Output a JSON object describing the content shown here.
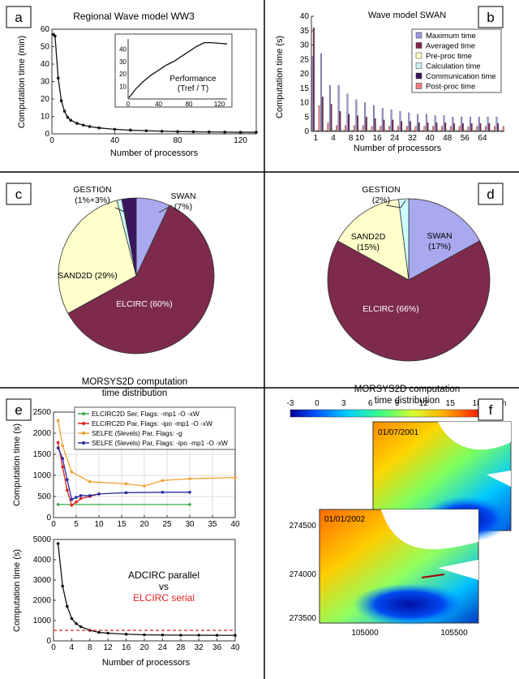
{
  "figure": {
    "panel_labels": [
      "a",
      "b",
      "c",
      "d",
      "e",
      "f"
    ]
  },
  "chart_data": [
    {
      "panel": "a",
      "type": "line",
      "title": "Regional Wave model WW3",
      "xlabel": "Number of processors",
      "ylabel": "Computation time (min)",
      "xlim": [
        0,
        130
      ],
      "ylim": [
        0,
        60
      ],
      "xticks": [
        0,
        40,
        80,
        120
      ],
      "yticks": [
        0,
        10,
        20,
        30,
        40,
        50,
        60
      ],
      "x": [
        1,
        2,
        4,
        6,
        8,
        10,
        12,
        16,
        20,
        24,
        30,
        40,
        50,
        60,
        70,
        80,
        90,
        100,
        110,
        120,
        130
      ],
      "y": [
        57,
        56,
        32,
        19,
        13,
        9.5,
        7.8,
        6,
        5,
        4.2,
        3.4,
        2.6,
        2.1,
        1.8,
        1.5,
        1.3,
        1.2,
        1.1,
        1.0,
        0.9,
        0.9
      ],
      "inset": {
        "annotation_line1": "Performance",
        "annotation_line2": "(Tref / T)",
        "xlim": [
          0,
          130
        ],
        "ylim": [
          0,
          48
        ],
        "xticks": [
          0,
          40,
          80,
          120
        ],
        "yticks": [
          10,
          20,
          30,
          40
        ],
        "x": [
          1,
          5,
          10,
          20,
          30,
          40,
          50,
          60,
          70,
          80,
          90,
          100,
          110,
          120,
          130
        ],
        "y": [
          1,
          4,
          8,
          14,
          19,
          23,
          27,
          30,
          34,
          38,
          42,
          45,
          45,
          44.5,
          44
        ]
      }
    },
    {
      "panel": "b",
      "type": "bar",
      "title": "Wave model SWAN",
      "xlabel": "Number of processors",
      "ylabel": "Computation time (s)",
      "ylim": [
        0,
        40
      ],
      "yticks": [
        0,
        5,
        10,
        15,
        20,
        25,
        30,
        35,
        40
      ],
      "categories": [
        "1",
        "2",
        "4",
        "6",
        "8",
        "10",
        "12",
        "16",
        "20",
        "24",
        "28",
        "32",
        "36",
        "40",
        "44",
        "48",
        "52",
        "56",
        "60",
        "64",
        "68",
        "72"
      ],
      "tick_labels": [
        "1",
        "4",
        "8",
        "10",
        "16",
        "24",
        "32",
        "40",
        "48",
        "56",
        "64"
      ],
      "legend_position": "top-right",
      "series": [
        {
          "name": "Maximum time",
          "color": "#9b9be0",
          "values": [
            26,
            27,
            16,
            16,
            13,
            11,
            10,
            9,
            8,
            7.5,
            7,
            6.5,
            6,
            6,
            5.5,
            5.5,
            5,
            5,
            5,
            5,
            5,
            5
          ]
        },
        {
          "name": "Averaged time",
          "color": "#7d2a4d",
          "values": [
            36,
            12,
            9.5,
            7,
            6,
            5.5,
            5,
            4.5,
            4,
            4,
            3.5,
            3.5,
            3,
            3,
            3,
            3,
            2.8,
            2.8,
            2.8,
            2.8,
            2.8,
            2.8
          ]
        },
        {
          "name": "Pre-proc time",
          "color": "#ffffc8",
          "values": [
            0.5,
            0.5,
            0.5,
            0.5,
            0.5,
            0.5,
            0.5,
            0.5,
            0.5,
            0.5,
            0.5,
            0.5,
            0.5,
            0.5,
            0.5,
            0.5,
            0.5,
            0.5,
            0.5,
            0.5,
            0.5,
            0.5
          ]
        },
        {
          "name": "Calculation time",
          "color": "#c8f0f0",
          "values": [
            0.3,
            0.3,
            0.3,
            0.3,
            0.3,
            0.3,
            0.3,
            0.3,
            0.3,
            0.3,
            0.3,
            0.3,
            0.3,
            0.3,
            0.3,
            0.3,
            0.3,
            0.3,
            0.3,
            0.3,
            0.3,
            0.3
          ]
        },
        {
          "name": "Communication time",
          "color": "#3a1560",
          "values": [
            0.3,
            0.3,
            0.3,
            0.3,
            0.3,
            0.3,
            0.3,
            0.3,
            0.3,
            0.3,
            0.3,
            0.3,
            0.3,
            0.3,
            0.3,
            0.3,
            0.3,
            0.3,
            0.3,
            0.3,
            0.3,
            0.3
          ]
        },
        {
          "name": "Post-proc time",
          "color": "#f08080",
          "values": [
            9,
            3,
            2,
            2,
            2,
            2,
            1.8,
            1.8,
            1.8,
            1.8,
            1.8,
            1.8,
            1.8,
            1.8,
            1.8,
            1.8,
            1.8,
            1.8,
            1.8,
            1.8,
            1.8,
            1.8
          ]
        }
      ]
    },
    {
      "panel": "c",
      "type": "pie",
      "caption_line1": "MORSYS2D computation",
      "caption_line2": "time distribution",
      "slices": [
        {
          "label": "SWAN",
          "sublabel": "(7%)",
          "value": 7,
          "color": "#a9a9ef"
        },
        {
          "label": "ELCIRC (60%)",
          "value": 60,
          "color": "#7d2a4d"
        },
        {
          "label": "SAND2D (29%)",
          "value": 29,
          "color": "#ffffcc"
        },
        {
          "label": "GESTION",
          "sublabel": "(1%+3%)",
          "value": 1,
          "color": "#ccffff"
        },
        {
          "label": "",
          "value": 3,
          "color": "#3a1560"
        }
      ]
    },
    {
      "panel": "d",
      "type": "pie",
      "caption_line1": "MORSYS2D computation",
      "caption_line2": "time distribution",
      "slices": [
        {
          "label": "SWAN",
          "sublabel": "(17%)",
          "value": 17,
          "color": "#a9a9ef"
        },
        {
          "label": "ELCIRC (66%)",
          "value": 66,
          "color": "#7d2a4d"
        },
        {
          "label": "SAND2D",
          "sublabel": "(15%)",
          "value": 15,
          "color": "#ffffcc"
        },
        {
          "label": "GESTION",
          "sublabel": "(2%)",
          "value": 2,
          "color": "#ccffff"
        }
      ]
    },
    {
      "panel": "e-top",
      "type": "line",
      "ylabel": "Computation time (s)",
      "xlim": [
        0,
        40
      ],
      "ylim": [
        0,
        2500
      ],
      "xticks": [
        0,
        5,
        10,
        15,
        20,
        25,
        30,
        35,
        40
      ],
      "yticks": [
        0,
        500,
        1000,
        1500,
        2000,
        2500
      ],
      "legend_position": "top-right",
      "series": [
        {
          "name": "ELCIRC2D Ser, Flags: -mp1 -O -xW",
          "color": "#3aa84a",
          "x": [
            1,
            30
          ],
          "y": [
            310,
            310
          ]
        },
        {
          "name": "ELCIRC2D Par, Flags: -ipo -mp1 -O -xW",
          "color": "#e02020",
          "x": [
            1,
            2,
            3,
            4,
            5,
            6,
            8,
            10
          ],
          "y": [
            1780,
            1200,
            650,
            290,
            370,
            450,
            500,
            560
          ]
        },
        {
          "name": "SELFE (5levels) Par, Flags: -g",
          "color": "#f0a030",
          "x": [
            1,
            2,
            4,
            8,
            16,
            20,
            24,
            30,
            40
          ],
          "y": [
            2300,
            1700,
            1080,
            850,
            800,
            750,
            880,
            920,
            950
          ]
        },
        {
          "name": "SELFE (5levels) Par, Flags: -ipo -mp1 -O -xW",
          "color": "#2a2aa0",
          "x": [
            1,
            2,
            3,
            4,
            5,
            6,
            8,
            10,
            16,
            24,
            30
          ],
          "y": [
            1650,
            1400,
            900,
            430,
            480,
            520,
            520,
            560,
            590,
            600,
            600
          ]
        }
      ]
    },
    {
      "panel": "e-bottom",
      "type": "line",
      "xlabel": "Number of processors",
      "ylabel": "Computation time (s)",
      "xlim": [
        0,
        40
      ],
      "ylim": [
        0,
        5000
      ],
      "xticks": [
        0,
        4,
        8,
        12,
        16,
        20,
        24,
        28,
        32,
        36,
        40
      ],
      "xtick_labels": [
        "0",
        "4",
        "8",
        "12",
        "16",
        "20",
        "24",
        "28",
        "32",
        "36",
        "40"
      ],
      "annotation_line1": "ADCIRC parallel",
      "annotation_line2": "vs",
      "annotation_line3": "ELCIRC serial",
      "series": [
        {
          "color": "#111111",
          "x": [
            1,
            2,
            3,
            4,
            5,
            6,
            8,
            10,
            12,
            16,
            20,
            24,
            28,
            32,
            36,
            40
          ],
          "y": [
            4800,
            2700,
            1700,
            1100,
            850,
            700,
            520,
            420,
            380,
            330,
            300,
            290,
            280,
            280,
            275,
            270
          ]
        },
        {
          "color": "#e02020",
          "dashed": true,
          "x": [
            0,
            40
          ],
          "y": [
            520,
            520
          ]
        }
      ]
    },
    {
      "panel": "f",
      "type": "heatmap",
      "colorbar_ticks": [
        "-3",
        "0",
        "3",
        "6",
        "9",
        "12",
        "15",
        "18"
      ],
      "colorbar_unit": "m",
      "colorbar_range": [
        -3,
        20
      ],
      "map1_date": "01/07/2001",
      "map2_date": "01/01/2002",
      "x_ticks": [
        "105000",
        "105500"
      ],
      "y_ticks": [
        "274500",
        "274000",
        "273500"
      ]
    }
  ]
}
